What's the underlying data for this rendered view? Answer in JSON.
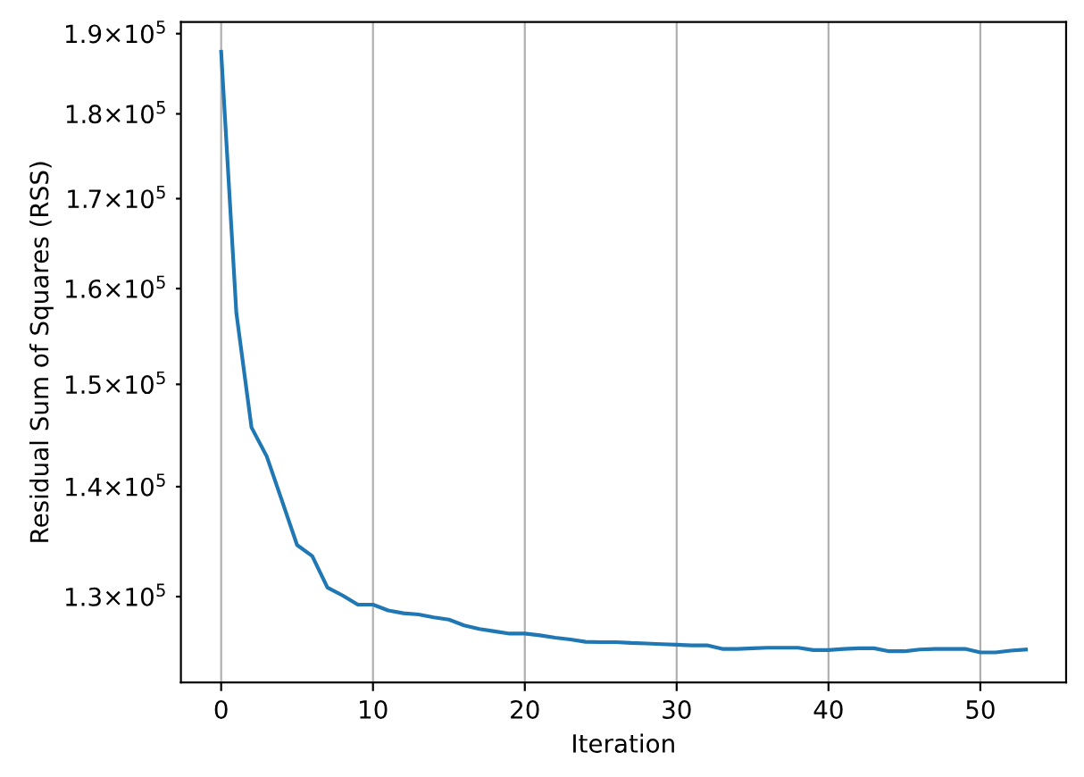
{
  "chart_data": {
    "type": "line",
    "xlabel": "Iteration",
    "ylabel": "Residual Sum of Squares (RSS)",
    "x": [
      0,
      1,
      2,
      3,
      4,
      5,
      6,
      7,
      8,
      9,
      10,
      11,
      12,
      13,
      14,
      15,
      16,
      17,
      18,
      19,
      20,
      21,
      22,
      23,
      24,
      25,
      26,
      27,
      28,
      29,
      30,
      31,
      32,
      33,
      34,
      35,
      36,
      37,
      38,
      39,
      40,
      41,
      42,
      43,
      44,
      45,
      46,
      47,
      48,
      49,
      50,
      51,
      52,
      53
    ],
    "values": [
      187700,
      157400,
      145700,
      142900,
      138700,
      134600,
      133600,
      130800,
      130100,
      129300,
      129300,
      128800,
      128550,
      128450,
      128200,
      128000,
      127500,
      127200,
      127000,
      126800,
      126800,
      126650,
      126450,
      126300,
      126100,
      126070,
      126070,
      126000,
      125960,
      125900,
      125850,
      125800,
      125800,
      125500,
      125500,
      125550,
      125600,
      125600,
      125600,
      125400,
      125400,
      125500,
      125550,
      125550,
      125300,
      125300,
      125450,
      125500,
      125500,
      125500,
      125200,
      125200,
      125350,
      125450
    ],
    "color": "#1f77b4",
    "line_style": "solid",
    "log": "y",
    "grid": "x",
    "xlim": [
      -2.65,
      55.65
    ],
    "xticks": [
      0,
      10,
      20,
      30,
      40,
      50
    ],
    "ylim": [
      122700,
      191500
    ],
    "yticks": [
      {
        "value": 130000,
        "label": "1.3×10$^{5}$"
      },
      {
        "value": 140000,
        "label": "1.4×10$^{5}$"
      },
      {
        "value": 150000,
        "label": "1.5×10$^{5}$"
      },
      {
        "value": 160000,
        "label": "1.6×10$^{5}$"
      },
      {
        "value": 170000,
        "label": "1.7×10$^{5}$"
      },
      {
        "value": 180000,
        "label": "1.8×10$^{5}$"
      },
      {
        "value": 190000,
        "label": "1.9×10$^{5}$"
      }
    ]
  }
}
